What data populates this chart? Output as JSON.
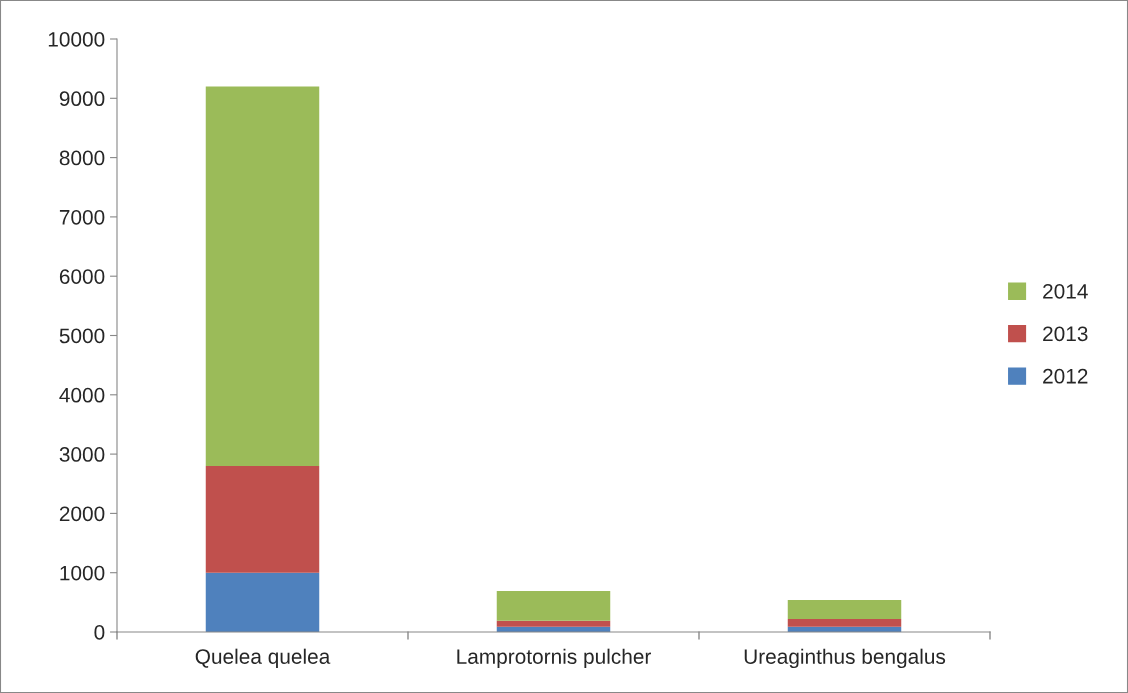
{
  "chart_data": {
    "type": "bar",
    "stacked": true,
    "categories": [
      "Quelea quelea",
      "Lamprotornis pulcher",
      "Ureaginthus bengalus"
    ],
    "series": [
      {
        "name": "2012",
        "color": "#4f81bd",
        "values": [
          1000,
          90,
          90
        ]
      },
      {
        "name": "2013",
        "color": "#c0504d",
        "values": [
          1800,
          100,
          130
        ]
      },
      {
        "name": "2014",
        "color": "#9bbb59",
        "values": [
          6400,
          500,
          320
        ]
      }
    ],
    "ylim": [
      0,
      10000
    ],
    "yticks": [
      0,
      1000,
      2000,
      3000,
      4000,
      5000,
      6000,
      7000,
      8000,
      9000,
      10000
    ],
    "grid": false,
    "legend": "right"
  }
}
